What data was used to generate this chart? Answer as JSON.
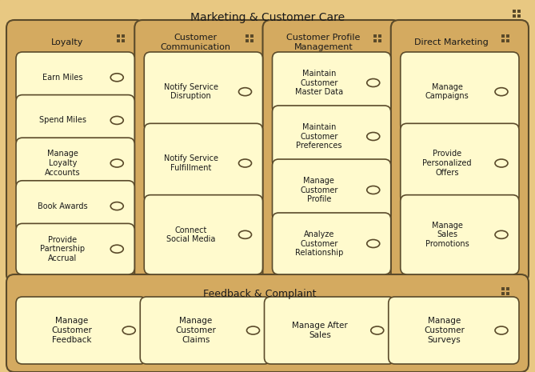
{
  "title": "Marketing & Customer Care",
  "bg_color": "#E8C882",
  "section_bg": "#D4AA60",
  "item_fill": "#FFFACD",
  "item_fill2": "#FFFF99",
  "edge_color": "#5A4A2A",
  "text_color": "#1A1A1A",
  "figsize": [
    6.69,
    4.65
  ],
  "dpi": 100,
  "sections": [
    {
      "label": "Loyalty",
      "col": 0,
      "items": [
        "Earn Miles",
        "Spend Miles",
        "Manage\nLoyalty\nAccounts",
        "Book Awards",
        "Provide\nPartnership\nAccrual"
      ]
    },
    {
      "label": "Customer\nCommunication",
      "col": 1,
      "items": [
        "Notify Service\nDisruption",
        "Notify Service\nFulfillment",
        "Connect\nSocial Media"
      ]
    },
    {
      "label": "Customer Profile\nManagement",
      "col": 2,
      "items": [
        "Maintain\nCustomer\nMaster Data",
        "Maintain\nCustomer\nPreferences",
        "Manage\nCustomer\nProfile",
        "Analyze\nCustomer\nRelationship"
      ]
    },
    {
      "label": "Direct Marketing",
      "col": 3,
      "items": [
        "Manage\nCampaigns",
        "Provide\nPersonalized\nOffers",
        "Manage\nSales\nPromotions"
      ]
    }
  ],
  "feedback": {
    "label": "Feedback & Complaint",
    "items": [
      "Manage\nCustomer\nFeedback",
      "Manage\nCustomer\nClaims",
      "Manage After\nSales",
      "Manage\nCustomer\nSurveys"
    ]
  }
}
